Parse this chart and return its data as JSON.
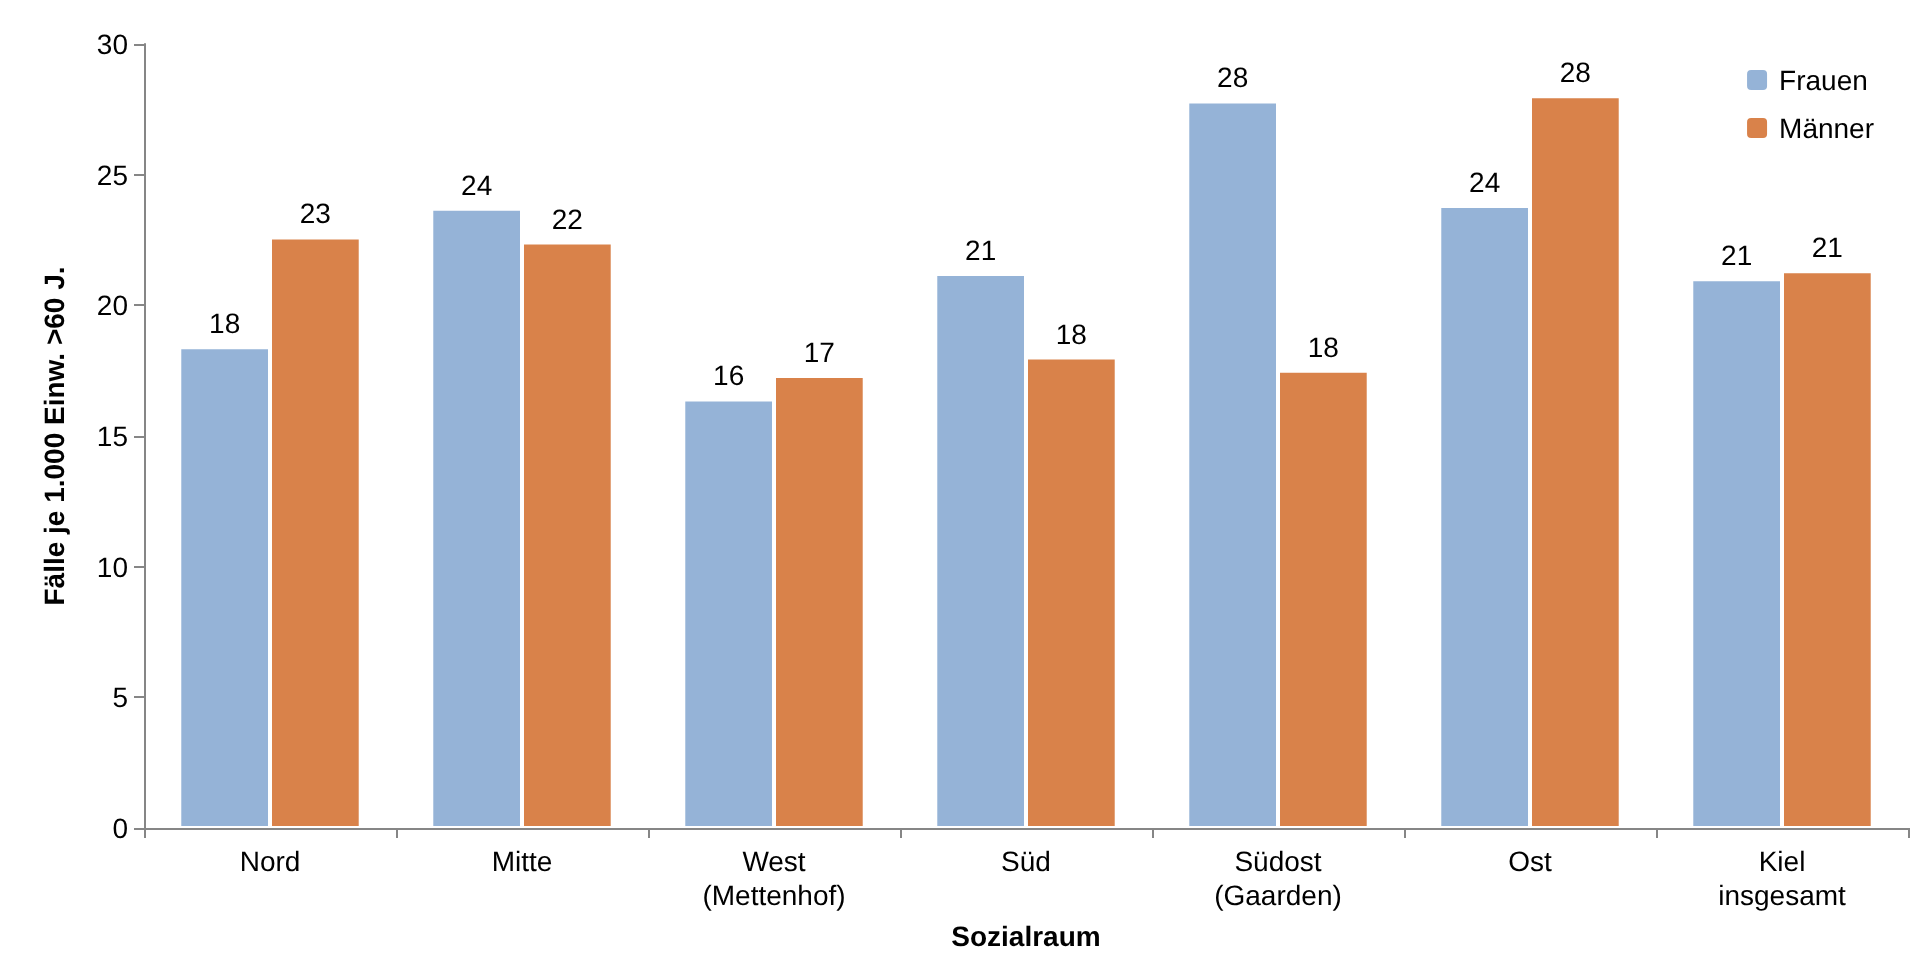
{
  "chart_data": {
    "type": "bar",
    "xlabel": "Sozialraum",
    "ylabel": "Fälle je 1.000 Einw. >60 J.",
    "categories": [
      "Nord",
      "Mitte",
      "West\n(Mettenhof)",
      "Süd",
      "Südost\n(Gaarden)",
      "Ost",
      "Kiel\ninsgesamt"
    ],
    "series": [
      {
        "name": "Frauen",
        "color": "#95b3d7",
        "values": [
          18.4,
          23.7,
          16.4,
          21.2,
          27.8,
          23.8,
          21.0
        ],
        "value_labels": [
          "18",
          "24",
          "16",
          "21",
          "28",
          "24",
          "21"
        ]
      },
      {
        "name": "Männer",
        "color": "#d9824a",
        "values": [
          22.6,
          22.4,
          17.3,
          18.0,
          17.5,
          28.0,
          21.3
        ],
        "value_labels": [
          "23",
          "22",
          "17",
          "18",
          "18",
          "28",
          "21"
        ]
      }
    ],
    "ylim": [
      0,
      30
    ],
    "yticks": [
      0,
      5,
      10,
      15,
      20,
      25,
      30
    ],
    "grid": false,
    "legend": "top right"
  }
}
